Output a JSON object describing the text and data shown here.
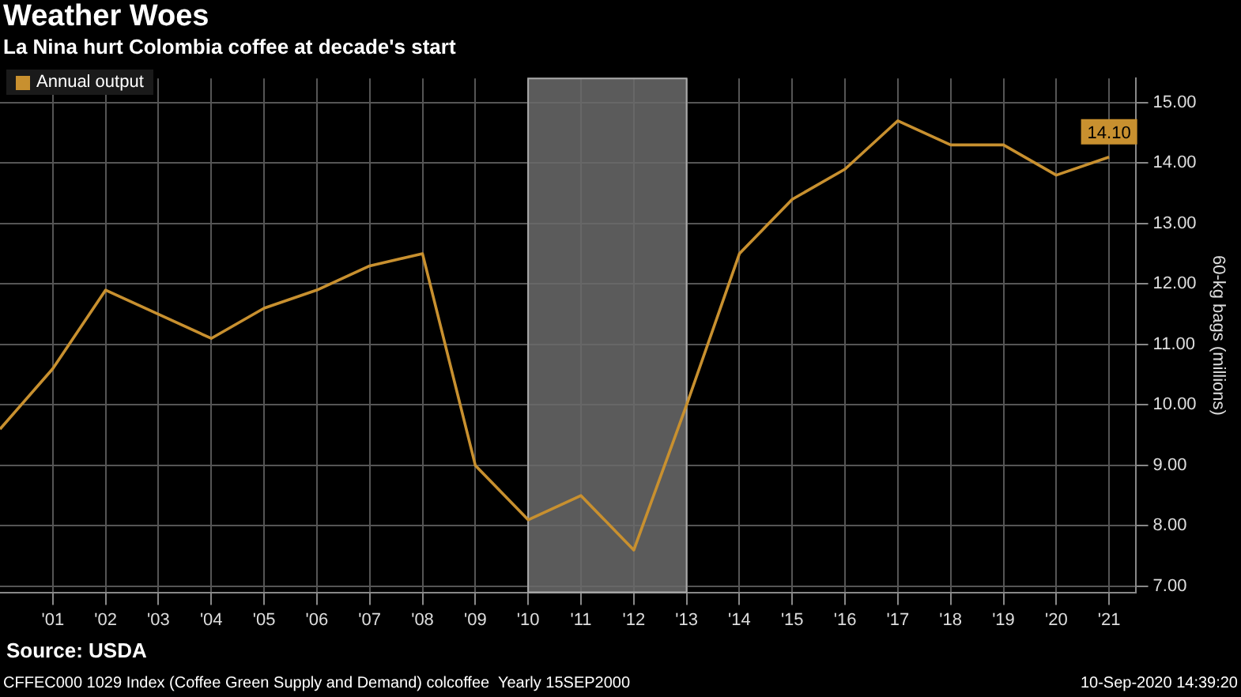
{
  "chart_data": {
    "type": "line",
    "title": "Weather Woes",
    "subtitle": "La Nina hurt Colombia coffee at decade's start",
    "ylabel": "60-kg bags (millions)",
    "x": [
      2000,
      2001,
      2002,
      2003,
      2004,
      2005,
      2006,
      2007,
      2008,
      2009,
      2010,
      2011,
      2012,
      2013,
      2014,
      2015,
      2016,
      2017,
      2018,
      2019,
      2020,
      2021
    ],
    "series": [
      {
        "name": "Annual output",
        "color": "#c8902f",
        "values": [
          9.6,
          10.6,
          11.9,
          11.5,
          11.1,
          11.6,
          11.9,
          12.3,
          12.5,
          9.0,
          8.1,
          8.5,
          7.6,
          10.0,
          12.5,
          13.4,
          13.9,
          14.7,
          14.3,
          14.3,
          13.8,
          14.1
        ],
        "value_labels": [
          null,
          null,
          null,
          null,
          null,
          null,
          null,
          null,
          null,
          null,
          null,
          null,
          null,
          null,
          null,
          null,
          null,
          null,
          null,
          null,
          null,
          "14.10"
        ]
      }
    ],
    "xlim": [
      2000,
      2021.5
    ],
    "xticks": [
      {
        "value": 2001,
        "label": "'01"
      },
      {
        "value": 2002,
        "label": "'02"
      },
      {
        "value": 2003,
        "label": "'03"
      },
      {
        "value": 2004,
        "label": "'04"
      },
      {
        "value": 2005,
        "label": "'05"
      },
      {
        "value": 2006,
        "label": "'06"
      },
      {
        "value": 2007,
        "label": "'07"
      },
      {
        "value": 2008,
        "label": "'08"
      },
      {
        "value": 2009,
        "label": "'09"
      },
      {
        "value": 2010,
        "label": "'10"
      },
      {
        "value": 2011,
        "label": "'11"
      },
      {
        "value": 2012,
        "label": "'12"
      },
      {
        "value": 2013,
        "label": "'13"
      },
      {
        "value": 2014,
        "label": "'14"
      },
      {
        "value": 2015,
        "label": "'15"
      },
      {
        "value": 2016,
        "label": "'16"
      },
      {
        "value": 2017,
        "label": "'17"
      },
      {
        "value": 2018,
        "label": "'18"
      },
      {
        "value": 2019,
        "label": "'19"
      },
      {
        "value": 2020,
        "label": "'20"
      },
      {
        "value": 2021,
        "label": "'21"
      }
    ],
    "ylim": [
      6.9,
      15.4
    ],
    "yticks": [
      {
        "value": 7,
        "label": "7.00"
      },
      {
        "value": 8,
        "label": "8.00"
      },
      {
        "value": 9,
        "label": "9.00"
      },
      {
        "value": 10,
        "label": "10.00"
      },
      {
        "value": 11,
        "label": "11.00"
      },
      {
        "value": 12,
        "label": "12.00"
      },
      {
        "value": 13,
        "label": "13.00"
      },
      {
        "value": 14,
        "label": "14.00"
      },
      {
        "value": 15,
        "label": "15.00"
      }
    ],
    "bands": [
      {
        "axis": "x",
        "from": 2010,
        "to": 2013,
        "color": "#6b6b6b"
      }
    ],
    "grid": true,
    "legend": "top left",
    "marker": "none",
    "line_style": "solid",
    "annotations": [
      "Source: USDA",
      "CFFEC000 1029 Index (Coffee Green Supply and Demand) colcoffee  Yearly 15SEP2000",
      "10-Sep-2020 14:39:20"
    ]
  }
}
